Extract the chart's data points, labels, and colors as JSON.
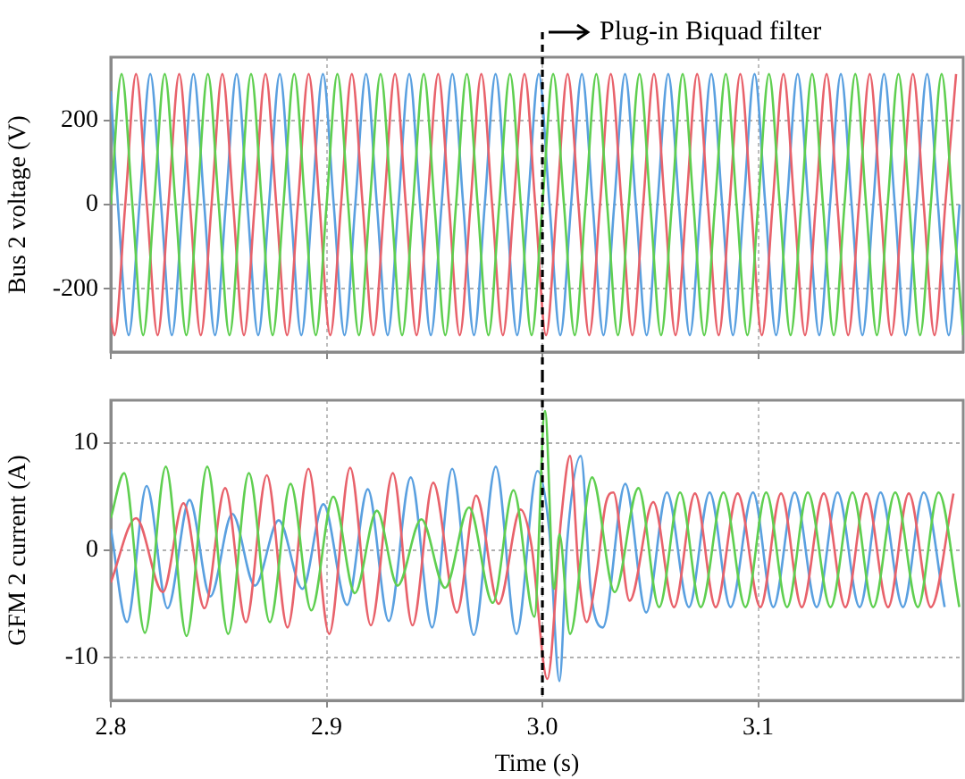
{
  "chart_data": [
    {
      "type": "line",
      "ylabel": "Bus 2 voltage (V)",
      "xlim": [
        2.8,
        3.195
      ],
      "xticks": [
        2.8,
        2.9,
        3.0,
        3.1
      ],
      "ylim": [
        -350,
        350
      ],
      "yticks": [
        -200,
        0,
        200
      ],
      "grid": true,
      "tick_labels": "y",
      "ref_lines": [
        {
          "axis": "x",
          "value": 3.0,
          "color": "#000000",
          "line_style": "dashed"
        }
      ],
      "annotations": [
        {
          "text": "Plug-in Biquad filter",
          "x": 3.0,
          "y": 350
        }
      ],
      "series": [
        {
          "color": "#5fcf50",
          "x": [
            2.8,
            2.805,
            2.81,
            2.815,
            2.82,
            2.825,
            2.83,
            2.835,
            2.84,
            2.845,
            2.85,
            2.855,
            2.86,
            2.865,
            2.87,
            2.875,
            2.88,
            2.885,
            2.89,
            2.895,
            2.9,
            2.905,
            2.91,
            2.915,
            2.92,
            2.925,
            2.93,
            2.935,
            2.94,
            2.945,
            2.95,
            2.955,
            2.96,
            2.965,
            2.97,
            2.975,
            2.98,
            2.985,
            2.99,
            2.995,
            3.0,
            3.005,
            3.01,
            3.015,
            3.02,
            3.025,
            3.03,
            3.035,
            3.04,
            3.045,
            3.05,
            3.055,
            3.06,
            3.065,
            3.07,
            3.075,
            3.08,
            3.085,
            3.09,
            3.095,
            3.1,
            3.105,
            3.11,
            3.115,
            3.12,
            3.125,
            3.13,
            3.135,
            3.14,
            3.145,
            3.15,
            3.155,
            3.16,
            3.165,
            3.17,
            3.175,
            3.18,
            3.185,
            3.19,
            3.195
          ],
          "values": [
            0,
            310,
            0,
            -310,
            0,
            310,
            0,
            -310,
            0,
            310,
            0,
            -310,
            0,
            310,
            0,
            -310,
            0,
            310,
            0,
            -310,
            0,
            310,
            0,
            -310,
            0,
            310,
            0,
            -310,
            0,
            310,
            0,
            -310,
            0,
            310,
            0,
            -310,
            0,
            310,
            0,
            -310,
            0,
            310,
            0,
            -310,
            0,
            310,
            0,
            -310,
            0,
            310,
            0,
            -310,
            0,
            310,
            0,
            -310,
            0,
            310,
            0,
            -310,
            0,
            310,
            0,
            -310,
            0,
            310,
            0,
            -310,
            0,
            310,
            0,
            -310,
            0,
            310,
            0,
            -310,
            0,
            310,
            0,
            -310
          ]
        },
        {
          "color": "#e8626b",
          "x": [
            2.8,
            2.8017,
            2.8067,
            2.8117,
            2.8167,
            2.8217,
            2.8267,
            2.8317,
            2.8367,
            2.8417,
            2.8467,
            2.8517,
            2.8567,
            2.8617,
            2.8667,
            2.8717,
            2.8767,
            2.8817,
            2.8867,
            2.8917,
            2.8967,
            2.9017,
            2.9067,
            2.9117,
            2.9167,
            2.9217,
            2.9267,
            2.9317,
            2.9367,
            2.9417,
            2.9467,
            2.9517,
            2.9567,
            2.9617,
            2.9667,
            2.9717,
            2.9767,
            2.9817,
            2.9867,
            2.9917,
            2.9967,
            3.0017,
            3.0067,
            3.0117,
            3.0167,
            3.0217,
            3.0267,
            3.0317,
            3.0367,
            3.0417,
            3.0467,
            3.0517,
            3.0567,
            3.0617,
            3.0667,
            3.0717,
            3.0767,
            3.0817,
            3.0867,
            3.0917,
            3.0967,
            3.1017,
            3.1067,
            3.1117,
            3.1167,
            3.1217,
            3.1267,
            3.1317,
            3.1367,
            3.1417,
            3.1467,
            3.1517,
            3.1567,
            3.1617,
            3.1667,
            3.1717,
            3.1767,
            3.1817,
            3.1867,
            3.1917
          ],
          "values": [
            -269,
            -310,
            0,
            310,
            0,
            -310,
            0,
            310,
            0,
            -310,
            0,
            310,
            0,
            -310,
            0,
            310,
            0,
            -310,
            0,
            310,
            0,
            -310,
            0,
            310,
            0,
            -310,
            0,
            310,
            0,
            -310,
            0,
            310,
            0,
            -310,
            0,
            310,
            0,
            -310,
            0,
            310,
            0,
            -310,
            0,
            310,
            0,
            -310,
            0,
            310,
            0,
            -310,
            0,
            310,
            0,
            -310,
            0,
            310,
            0,
            -310,
            0,
            310,
            0,
            -310,
            0,
            310,
            0,
            -310,
            0,
            310,
            0,
            -310,
            0,
            310,
            0,
            -310,
            0,
            310,
            0,
            -310,
            0,
            310
          ]
        },
        {
          "color": "#5aa0e0",
          "x": [
            2.8,
            2.8033,
            2.8083,
            2.8133,
            2.8183,
            2.8233,
            2.8283,
            2.8333,
            2.8383,
            2.8433,
            2.8483,
            2.8533,
            2.8583,
            2.8633,
            2.8683,
            2.8733,
            2.8783,
            2.8833,
            2.8883,
            2.8933,
            2.8983,
            2.9033,
            2.9083,
            2.9133,
            2.9183,
            2.9233,
            2.9283,
            2.9333,
            2.9383,
            2.9433,
            2.9483,
            2.9533,
            2.9583,
            2.9633,
            2.9683,
            2.9733,
            2.9783,
            2.9833,
            2.9883,
            2.9933,
            2.9983,
            3.0033,
            3.0083,
            3.0133,
            3.0183,
            3.0233,
            3.0283,
            3.0333,
            3.0383,
            3.0433,
            3.0483,
            3.0533,
            3.0583,
            3.0633,
            3.0683,
            3.0733,
            3.0783,
            3.0833,
            3.0883,
            3.0933,
            3.0983,
            3.1033,
            3.1083,
            3.1133,
            3.1183,
            3.1233,
            3.1283,
            3.1333,
            3.1383,
            3.1433,
            3.1483,
            3.1533,
            3.1583,
            3.1633,
            3.1683,
            3.1733,
            3.1783,
            3.1833,
            3.1883,
            3.1933
          ],
          "values": [
            269,
            0,
            -310,
            0,
            310,
            0,
            -310,
            0,
            310,
            0,
            -310,
            0,
            310,
            0,
            -310,
            0,
            310,
            0,
            -310,
            0,
            310,
            0,
            -310,
            0,
            310,
            0,
            -310,
            0,
            310,
            0,
            -310,
            0,
            310,
            0,
            -310,
            0,
            310,
            0,
            -310,
            0,
            310,
            0,
            -310,
            0,
            310,
            0,
            -310,
            0,
            310,
            0,
            -310,
            0,
            310,
            0,
            -310,
            0,
            310,
            0,
            -310,
            0,
            310,
            0,
            -310,
            0,
            310,
            0,
            -310,
            0,
            310,
            0,
            -310,
            0,
            310,
            0,
            -310,
            0,
            310,
            0,
            -310,
            0
          ]
        }
      ]
    },
    {
      "type": "line",
      "xlabel": "Time (s)",
      "ylabel": "GFM 2 current (A)",
      "xlim": [
        2.8,
        3.195
      ],
      "xticks": [
        2.8,
        2.9,
        {
          "value": 3.0,
          "label": "3.0"
        },
        3.1
      ],
      "ylim": [
        -14,
        14
      ],
      "yticks": [
        -10,
        0,
        10
      ],
      "grid": true,
      "ref_lines": [
        {
          "axis": "x",
          "value": 3.0,
          "color": "#000000",
          "line_style": "dashed"
        }
      ],
      "series": [
        {
          "color": "#5fcf50",
          "x": [
            2.8,
            2.8062,
            2.8158,
            2.8255,
            2.8351,
            2.8447,
            2.8544,
            2.864,
            2.8737,
            2.8833,
            2.8929,
            2.9031,
            2.9131,
            2.9233,
            2.9329,
            2.9439,
            2.9549,
            2.966,
            2.977,
            2.9866,
            2.9963,
            3.0012,
            3.0054,
            3.0079,
            3.0128,
            3.023,
            3.0335,
            3.0445,
            3.0541,
            3.0638,
            3.0734,
            3.0839,
            3.0941,
            3.1037,
            3.1134,
            3.123,
            3.1335,
            3.1437,
            3.1533,
            3.1635,
            3.174,
            3.1836,
            3.1932
          ],
          "values": [
            3.0,
            7.2,
            -7.7,
            7.8,
            -8.0,
            7.8,
            -7.8,
            7.2,
            -6.7,
            6.2,
            -5.6,
            5.0,
            -4.0,
            3.7,
            -3.3,
            2.9,
            -3.5,
            4.0,
            -4.9,
            5.6,
            -6.2,
            13.0,
            -3.6,
            1.5,
            -7.8,
            6.8,
            -3.9,
            5.8,
            -5.3,
            5.4,
            -5.3,
            5.4,
            -5.3,
            5.4,
            -5.3,
            5.4,
            -5.3,
            5.4,
            -5.3,
            5.4,
            -5.3,
            5.4,
            -5.3
          ]
        },
        {
          "color": "#e8626b",
          "x": [
            2.8,
            2.8117,
            2.8241,
            2.8337,
            2.8434,
            2.853,
            2.8626,
            2.8723,
            2.8819,
            2.8916,
            2.9012,
            2.9109,
            2.9205,
            2.9307,
            2.9398,
            2.9494,
            2.9604,
            2.9693,
            2.9797,
            2.9899,
            2.9949,
            3.0023,
            3.0087,
            3.0128,
            3.017,
            3.0205,
            3.0252,
            3.0293,
            3.0329,
            3.0404,
            3.0514,
            3.061,
            3.0707,
            3.0803,
            3.0905,
            3.101,
            3.1106,
            3.1202,
            3.1304,
            3.1404,
            3.15,
            3.1602,
            3.1698,
            3.18,
            3.1905
          ],
          "values": [
            -3.0,
            3.0,
            -3.9,
            4.4,
            -5.4,
            5.8,
            -6.7,
            7.0,
            -7.2,
            7.6,
            -7.8,
            7.7,
            -7.0,
            7.2,
            -7.0,
            6.3,
            -5.8,
            5.1,
            -5.0,
            3.8,
            0.5,
            -12.0,
            3.0,
            8.8,
            -2.5,
            -6.7,
            -2.0,
            4.3,
            5.4,
            -4.7,
            4.5,
            -5.3,
            5.3,
            -5.3,
            5.3,
            -5.3,
            5.3,
            -5.3,
            5.3,
            -5.3,
            5.3,
            -5.3,
            5.3,
            -5.3,
            5.3
          ]
        },
        {
          "color": "#5aa0e0",
          "x": [
            2.8,
            2.8075,
            2.8166,
            2.8263,
            2.8365,
            2.8461,
            2.8563,
            2.8668,
            2.8778,
            2.8888,
            2.8985,
            2.9095,
            2.9191,
            2.9288,
            2.939,
            2.9489,
            2.9582,
            2.9682,
            2.9784,
            2.988,
            2.9977,
            3.0032,
            3.0079,
            3.0114,
            3.0178,
            3.0225,
            3.028,
            3.0384,
            3.0481,
            3.0577,
            3.0679,
            3.0775,
            3.0872,
            3.0976,
            3.107,
            3.1169,
            3.1271,
            3.1368,
            3.147,
            3.1567,
            3.1671,
            3.1767,
            3.1864
          ],
          "values": [
            2.0,
            -6.7,
            6.0,
            -5.4,
            4.7,
            -4.3,
            3.4,
            -3.3,
            2.8,
            -3.6,
            4.3,
            -5.1,
            5.7,
            -6.6,
            6.8,
            -7.2,
            7.6,
            -7.9,
            7.8,
            -7.8,
            7.4,
            1.8,
            -12.2,
            0.6,
            8.8,
            -3.9,
            -7.2,
            6.2,
            -5.8,
            5.4,
            -5.3,
            5.4,
            -5.3,
            5.4,
            -5.3,
            5.4,
            -5.3,
            5.4,
            -5.3,
            5.4,
            -5.3,
            5.4,
            -5.3
          ]
        }
      ]
    }
  ]
}
